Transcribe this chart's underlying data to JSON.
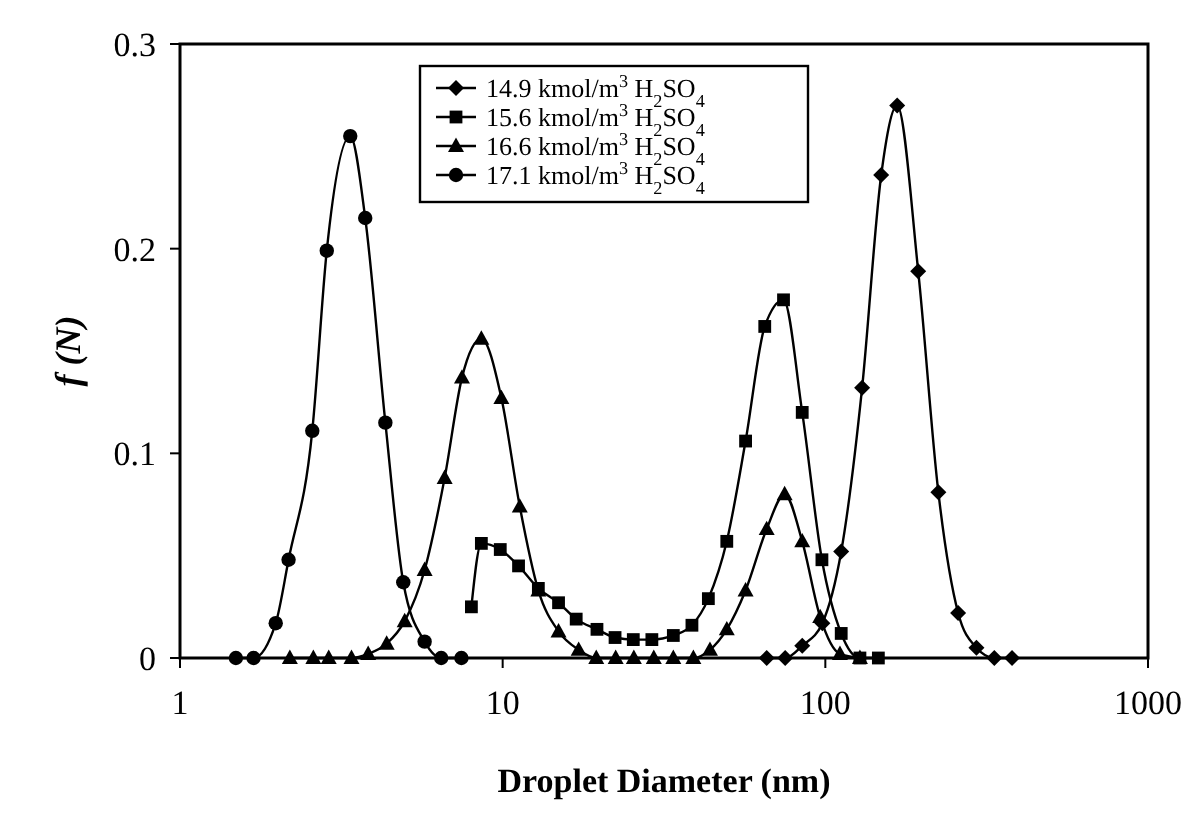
{
  "chart_data": {
    "type": "line",
    "xlabel": "Droplet Diameter (nm)",
    "ylabel": "f (N)",
    "log": "x",
    "xlim": [
      1,
      1000
    ],
    "xticks": [
      1,
      10,
      100,
      1000
    ],
    "ylim": [
      0,
      0.3
    ],
    "yticks": [
      0,
      0.1,
      0.2,
      0.3
    ],
    "grid": false,
    "legend": "top",
    "line_style": "solid",
    "series": [
      {
        "name": "14.9 kmol/m$^{3}$ H$_{2}$SO$_{4}$",
        "color": "#000000",
        "marker": "diamond",
        "x": [
          65.8,
          75.1,
          84.8,
          97.9,
          112,
          130,
          149,
          167,
          194,
          224,
          258,
          294,
          334,
          379
        ],
        "values": [
          0,
          0,
          0.006,
          0.017,
          0.052,
          0.132,
          0.236,
          0.27,
          0.189,
          0.081,
          0.022,
          0.005,
          0,
          0
        ]
      },
      {
        "name": "15.6 kmol/m$^{3}$ H$_{2}$SO$_{4}$",
        "color": "#000000",
        "marker": "square",
        "x": [
          8.0,
          8.59,
          9.83,
          11.2,
          12.9,
          14.9,
          16.9,
          19.6,
          22.3,
          25.4,
          29.0,
          33.8,
          38.6,
          43.4,
          49.5,
          56.6,
          64.9,
          74.2,
          84.8,
          97.6,
          112,
          128,
          146
        ],
        "values": [
          0.025,
          0.056,
          0.053,
          0.045,
          0.034,
          0.027,
          0.019,
          0.014,
          0.01,
          0.009,
          0.009,
          0.011,
          0.016,
          0.029,
          0.057,
          0.106,
          0.162,
          0.175,
          0.12,
          0.048,
          0.012,
          0,
          0
        ]
      },
      {
        "name": "16.6 kmol/m$^{3}$ H$_{2}$SO$_{4}$",
        "color": "#000000",
        "marker": "triangle",
        "x": [
          2.19,
          2.59,
          2.89,
          3.4,
          3.83,
          4.37,
          4.97,
          5.73,
          6.61,
          7.48,
          8.59,
          9.91,
          11.3,
          12.9,
          14.9,
          17.2,
          19.5,
          22.4,
          25.5,
          29.4,
          33.8,
          39.0,
          43.9,
          49.5,
          56.6,
          65.8,
          74.8,
          84.8,
          96.4,
          111,
          128
        ],
        "values": [
          0,
          0,
          0,
          0,
          0.002,
          0.007,
          0.018,
          0.043,
          0.088,
          0.137,
          0.156,
          0.127,
          0.074,
          0.033,
          0.013,
          0.004,
          0,
          0,
          0,
          0,
          0,
          0,
          0.004,
          0.014,
          0.033,
          0.063,
          0.08,
          0.057,
          0.02,
          0.002,
          0
        ]
      },
      {
        "name": "17.1 kmol/m$^{3}$ H$_{2}$SO$_{4}$",
        "color": "#000000",
        "marker": "circle",
        "x": [
          1.49,
          1.69,
          1.98,
          2.17,
          2.57,
          2.85,
          3.37,
          3.75,
          4.33,
          4.92,
          5.73,
          6.45,
          7.45
        ],
        "values": [
          0,
          0,
          0.017,
          0.048,
          0.111,
          0.199,
          0.255,
          0.215,
          0.115,
          0.037,
          0.008,
          0,
          0
        ]
      }
    ]
  }
}
